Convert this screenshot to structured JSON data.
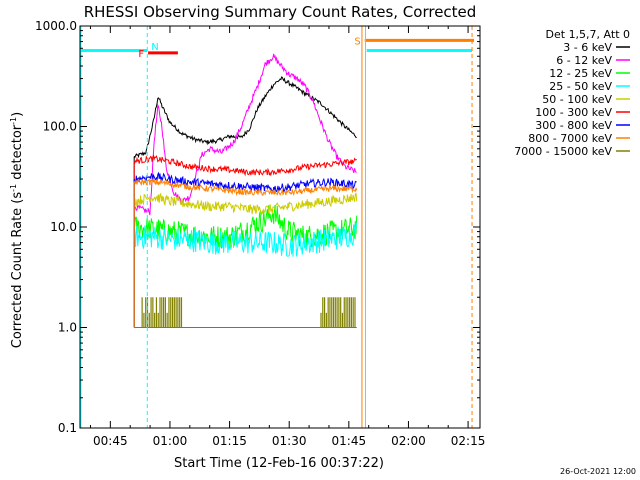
{
  "chart_data": {
    "type": "line",
    "title": "RHESSI Observing Summary Count Rates, Corrected",
    "xlabel": "Start Time (12-Feb-16 00:37:22)",
    "ylabel": "Corrected Count Rate (s⁻¹ detector⁻¹)",
    "ylabel_parts": [
      "Corrected Count Rate (s",
      "-1",
      " detector",
      "-1",
      ")"
    ],
    "yscale": "log",
    "ylim": [
      0.1,
      1000
    ],
    "xlim_minutes": [
      37.37,
      138
    ],
    "x_ticks": [
      {
        "m": 45,
        "label": "00:45"
      },
      {
        "m": 60,
        "label": "01:00"
      },
      {
        "m": 75,
        "label": "01:15"
      },
      {
        "m": 90,
        "label": "01:30"
      },
      {
        "m": 105,
        "label": "01:45"
      },
      {
        "m": 120,
        "label": "02:00"
      },
      {
        "m": 135,
        "label": "02:15"
      }
    ],
    "y_ticks": [
      {
        "v": 0.1,
        "label": "0.1"
      },
      {
        "v": 1,
        "label": "1.0"
      },
      {
        "v": 10,
        "label": "10.0"
      },
      {
        "v": 100,
        "label": "100.0"
      },
      {
        "v": 1000,
        "label": "1000.0"
      }
    ],
    "legend_header": "Det 1,5,7, Att 0",
    "legend_position": "right",
    "footer_date": "26-Oct-2021 12:00",
    "series": [
      {
        "name": "3 - 6 keV",
        "color": "#000000",
        "points": [
          [
            51,
            50
          ],
          [
            54,
            55
          ],
          [
            56,
            120
          ],
          [
            57,
            200
          ],
          [
            58,
            160
          ],
          [
            60,
            110
          ],
          [
            63,
            85
          ],
          [
            66,
            75
          ],
          [
            69,
            70
          ],
          [
            72,
            72
          ],
          [
            75,
            80
          ],
          [
            78,
            78
          ],
          [
            80,
            95
          ],
          [
            82,
            150
          ],
          [
            84,
            200
          ],
          [
            86,
            260
          ],
          [
            88,
            300
          ],
          [
            90,
            270
          ],
          [
            92,
            240
          ],
          [
            95,
            200
          ],
          [
            98,
            170
          ],
          [
            101,
            130
          ],
          [
            104,
            100
          ],
          [
            106,
            85
          ],
          [
            107,
            80
          ]
        ]
      },
      {
        "name": "6 - 12 keV",
        "color": "#ff00ff",
        "points": [
          [
            51,
            16
          ],
          [
            55,
            14
          ],
          [
            56,
            70
          ],
          [
            57,
            160
          ],
          [
            58,
            100
          ],
          [
            59,
            40
          ],
          [
            61,
            22
          ],
          [
            63,
            18
          ],
          [
            65,
            20
          ],
          [
            68,
            52
          ],
          [
            70,
            60
          ],
          [
            73,
            55
          ],
          [
            76,
            70
          ],
          [
            78,
            100
          ],
          [
            80,
            160
          ],
          [
            82,
            250
          ],
          [
            84,
            420
          ],
          [
            86,
            500
          ],
          [
            88,
            400
          ],
          [
            90,
            330
          ],
          [
            92,
            300
          ],
          [
            94,
            250
          ],
          [
            96,
            180
          ],
          [
            98,
            110
          ],
          [
            100,
            70
          ],
          [
            102,
            50
          ],
          [
            104,
            40
          ],
          [
            107,
            35
          ]
        ]
      },
      {
        "name": "12 - 25 keV",
        "color": "#00ff00",
        "points": [
          [
            51,
            10
          ],
          [
            56,
            9.5
          ],
          [
            60,
            9
          ],
          [
            65,
            8.5
          ],
          [
            70,
            8
          ],
          [
            75,
            8
          ],
          [
            78,
            9
          ],
          [
            80,
            10
          ],
          [
            82,
            11
          ],
          [
            84,
            12
          ],
          [
            86,
            14
          ],
          [
            88,
            11
          ],
          [
            90,
            9
          ],
          [
            94,
            8
          ],
          [
            98,
            8.5
          ],
          [
            102,
            9
          ],
          [
            105,
            9.5
          ],
          [
            107,
            10
          ]
        ]
      },
      {
        "name": "25 - 50 keV",
        "color": "#00ffff",
        "points": [
          [
            51,
            8
          ],
          [
            56,
            8
          ],
          [
            60,
            7.5
          ],
          [
            65,
            7.5
          ],
          [
            70,
            7
          ],
          [
            75,
            7
          ],
          [
            80,
            7
          ],
          [
            85,
            7
          ],
          [
            90,
            6.5
          ],
          [
            95,
            7
          ],
          [
            100,
            7.5
          ],
          [
            104,
            8
          ],
          [
            107,
            9
          ]
        ]
      },
      {
        "name": "50 - 100 keV",
        "color": "#cccc00",
        "points": [
          [
            51,
            18
          ],
          [
            56,
            20
          ],
          [
            60,
            18
          ],
          [
            65,
            17
          ],
          [
            70,
            16
          ],
          [
            75,
            16
          ],
          [
            80,
            15
          ],
          [
            85,
            15
          ],
          [
            90,
            16
          ],
          [
            95,
            17
          ],
          [
            100,
            18
          ],
          [
            104,
            19
          ],
          [
            107,
            20
          ]
        ]
      },
      {
        "name": "100 - 300 keV",
        "color": "#ff0000",
        "points": [
          [
            51,
            45
          ],
          [
            56,
            48
          ],
          [
            60,
            45
          ],
          [
            65,
            40
          ],
          [
            70,
            38
          ],
          [
            75,
            37
          ],
          [
            80,
            35
          ],
          [
            85,
            35
          ],
          [
            90,
            37
          ],
          [
            95,
            40
          ],
          [
            100,
            42
          ],
          [
            104,
            44
          ],
          [
            107,
            45
          ]
        ]
      },
      {
        "name": "300 - 800 keV",
        "color": "#0000ff",
        "extra_color": true,
        "points": [
          [
            51,
            30
          ],
          [
            56,
            32
          ],
          [
            60,
            30
          ],
          [
            65,
            28
          ],
          [
            70,
            27
          ],
          [
            75,
            26
          ],
          [
            80,
            25
          ],
          [
            85,
            24
          ],
          [
            90,
            25
          ],
          [
            95,
            27
          ],
          [
            100,
            28
          ],
          [
            104,
            27
          ],
          [
            107,
            26
          ]
        ]
      },
      {
        "name": "800 - 7000 keV",
        "color": "#ff8000",
        "points": [
          [
            51,
            28
          ],
          [
            56,
            28
          ],
          [
            60,
            27
          ],
          [
            65,
            25
          ],
          [
            70,
            24
          ],
          [
            75,
            23
          ],
          [
            80,
            22
          ],
          [
            85,
            22
          ],
          [
            90,
            22
          ],
          [
            95,
            23
          ],
          [
            100,
            24
          ],
          [
            104,
            24
          ],
          [
            107,
            24
          ]
        ]
      },
      {
        "name": "7000 - 15000 keV",
        "color": "#808000",
        "points": [
          [
            51,
            1
          ],
          [
            107,
            1
          ]
        ]
      }
    ],
    "blue_series_note": "",
    "attenuator_bars_7000": {
      "value_low": 1.0,
      "value_high": 2.0,
      "ranges": [
        [
          53,
          63
        ],
        [
          98,
          107
        ]
      ]
    },
    "flags": [
      {
        "label": "N",
        "type": "vline",
        "m": 54.3,
        "color": "#00ffff",
        "dashed": true
      },
      {
        "label": "F",
        "type": "hbar",
        "m_start": 54.5,
        "m_end": 62,
        "value": 540,
        "color": "#ff0000"
      },
      {
        "label": "S",
        "type": "hbar",
        "m_start": 109,
        "m_end": 136.5,
        "value": 720,
        "color": "#ff8000"
      },
      {
        "label": "",
        "type": "vline",
        "m": 109.2,
        "color": "#00ffff",
        "dashed": false
      },
      {
        "label": "",
        "type": "vline",
        "m": 108.3,
        "color": "#ff8000",
        "dashed": false
      },
      {
        "label": "",
        "type": "vline",
        "m": 136,
        "color": "#ff8000",
        "dashed": true
      },
      {
        "label": "",
        "type": "vline",
        "m": 37.6,
        "color": "#00ffff",
        "dashed": false
      }
    ],
    "night_bars": [
      {
        "m_start": 37.4,
        "m_end": 54.3,
        "value": 570,
        "color": "#00ffff"
      },
      {
        "m_start": 109.5,
        "m_end": 136,
        "value": 570,
        "color": "#00ffff"
      }
    ],
    "grid": false
  }
}
